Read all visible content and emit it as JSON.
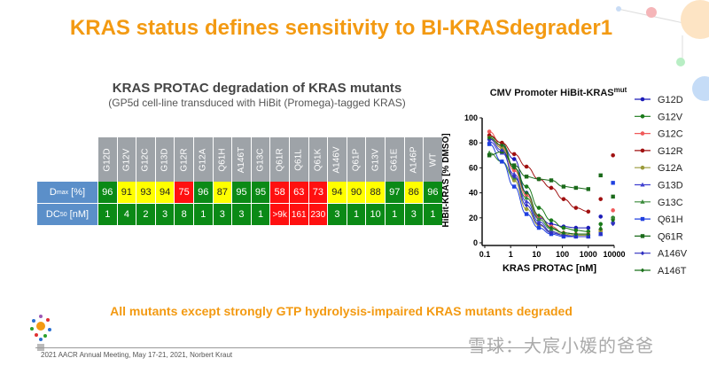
{
  "title": "KRAS status defines sensitivity to BI-KRASdegrader1",
  "table": {
    "title": "KRAS PROTAC degradation of KRAS mutants",
    "subtitle": "(GP5d cell-line transduced with HiBit (Promega)-tagged KRAS)",
    "columns": [
      "G12D",
      "G12V",
      "G12C",
      "G13D",
      "G12R",
      "G12A",
      "Q61H",
      "A146T",
      "G13C",
      "Q61R",
      "Q61L",
      "Q61K",
      "A146V",
      "Q61P",
      "G13V",
      "G61E",
      "A146P",
      "WT"
    ],
    "rows": [
      {
        "label_main": "D",
        "label_sub": "max",
        "label_unit": " [%]",
        "values": [
          "96",
          "91",
          "93",
          "94",
          "75",
          "96",
          "87",
          "95",
          "95",
          "58",
          "63",
          "73",
          "94",
          "90",
          "88",
          "97",
          "86",
          "96"
        ],
        "colors": [
          "green",
          "yellow",
          "yellow",
          "yellow",
          "red",
          "green",
          "yellow",
          "green",
          "green",
          "red",
          "red",
          "red",
          "yellow",
          "yellow",
          "yellow",
          "green",
          "yellow",
          "green"
        ]
      },
      {
        "label_main": "DC",
        "label_sub": "50",
        "label_unit": " [nM]",
        "values": [
          "1",
          "4",
          "2",
          "3",
          "8",
          "1",
          "3",
          "3",
          "1",
          ">9k",
          "161",
          "230",
          "3",
          "1",
          "10",
          "1",
          "3",
          "1"
        ],
        "colors": [
          "green",
          "green",
          "green",
          "green",
          "green",
          "green",
          "green",
          "green",
          "green",
          "red",
          "red",
          "red",
          "green",
          "green",
          "green",
          "green",
          "green",
          "green"
        ]
      }
    ]
  },
  "chart_data": {
    "type": "line",
    "title": "CMV Promoter HiBit-KRAS",
    "title_sup": "mut",
    "xlabel": "KRAS PROTAC [nM]",
    "ylabel": "HiBit-KRAS [% DMSO]",
    "xscale": "log",
    "xlim": [
      0.1,
      10000
    ],
    "ylim": [
      0,
      100
    ],
    "xticks": [
      "0.1",
      "1",
      "10",
      "100",
      "1000",
      "10000"
    ],
    "yticks": [
      "0",
      "20",
      "40",
      "60",
      "80",
      "100"
    ],
    "legend_position": "right",
    "x": [
      0.15,
      0.46,
      1.37,
      4.1,
      12.3,
      37,
      111,
      333,
      1000
    ],
    "x_unconnected": [
      3000,
      9000
    ],
    "series": [
      {
        "name": "G12D",
        "color": "#1c1cb8",
        "marker": "circle",
        "values": [
          83,
          78,
          67,
          40,
          20,
          15,
          13,
          12,
          12
        ],
        "extra": [
          21,
          16
        ]
      },
      {
        "name": "G12V",
        "color": "#1a7a1a",
        "marker": "circle",
        "values": [
          85,
          80,
          60,
          45,
          28,
          18,
          12,
          10,
          9
        ],
        "extra": [
          15,
          20
        ]
      },
      {
        "name": "G12C",
        "color": "#f05a5a",
        "marker": "circle",
        "values": [
          89,
          77,
          58,
          38,
          21,
          13,
          8,
          7,
          7
        ],
        "extra": [
          10,
          26
        ]
      },
      {
        "name": "G12R",
        "color": "#a01010",
        "marker": "circle",
        "values": [
          86,
          80,
          71,
          61,
          51,
          44,
          35,
          28,
          25
        ],
        "extra": [
          35,
          70
        ]
      },
      {
        "name": "G12A",
        "color": "#9a9a3a",
        "marker": "circle",
        "values": [
          84,
          76,
          50,
          27,
          14,
          9,
          7,
          6,
          6
        ],
        "extra": [
          9,
          19
        ]
      },
      {
        "name": "G13D",
        "color": "#4040d0",
        "marker": "triangle",
        "values": [
          81,
          72,
          55,
          33,
          17,
          9,
          6,
          5,
          5
        ],
        "extra": [
          7,
          17
        ]
      },
      {
        "name": "G13C",
        "color": "#3a8a3a",
        "marker": "triangle",
        "values": [
          72,
          65,
          52,
          36,
          19,
          11,
          8,
          7,
          7
        ],
        "extra": [
          12,
          20
        ]
      },
      {
        "name": "Q61H",
        "color": "#2040e0",
        "marker": "square",
        "values": [
          79,
          65,
          45,
          23,
          12,
          7,
          5,
          5,
          5
        ],
        "extra": [
          7,
          48
        ]
      },
      {
        "name": "Q61R",
        "color": "#1a6a1a",
        "marker": "square",
        "values": [
          70,
          73,
          62,
          53,
          51,
          50,
          45,
          44,
          43
        ],
        "extra": [
          54,
          37
        ]
      },
      {
        "name": "A146V",
        "color": "#3030c0",
        "marker": "diamond",
        "values": [
          83,
          74,
          53,
          30,
          15,
          8,
          6,
          5,
          5
        ],
        "extra": [
          7,
          15
        ]
      },
      {
        "name": "A146T",
        "color": "#1a701a",
        "marker": "diamond",
        "values": [
          84,
          78,
          60,
          40,
          22,
          12,
          8,
          7,
          7
        ],
        "extra": [
          11,
          18
        ]
      }
    ]
  },
  "bottom_message": "All mutants except strongly GTP hydrolysis-impaired KRAS mutants degraded",
  "footer": "2021 AACR Annual Meeting, May 17-21, 2021, Norbert Kraut",
  "watermark": "雪球：大宸小媛的爸爸",
  "colors": {
    "accent": "#f39a12",
    "row_label": "#5b8fc9",
    "header": "#9ea3a8",
    "green": "#0b8a16",
    "yellow": "#ffff00",
    "red": "#ff1010"
  }
}
